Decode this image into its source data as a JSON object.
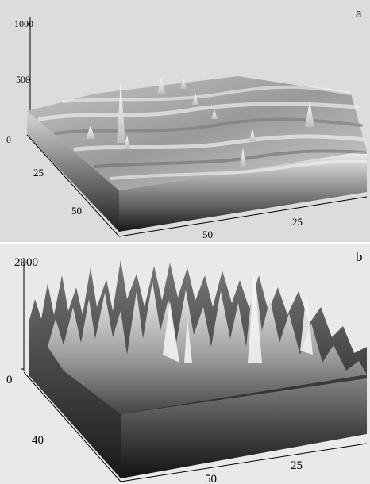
{
  "figure": {
    "panels": [
      {
        "letter": "a",
        "z_ticks": [
          "1000",
          "500",
          "0"
        ],
        "left_axis_ticks": [
          "25",
          "50"
        ],
        "right_axis_ticks": [
          "50",
          "25"
        ]
      },
      {
        "letter": "b",
        "z_ticks": [
          "2000",
          "0"
        ],
        "left_axis_ticks": [
          "40"
        ],
        "right_axis_ticks": [
          "50",
          "25"
        ]
      }
    ]
  }
}
